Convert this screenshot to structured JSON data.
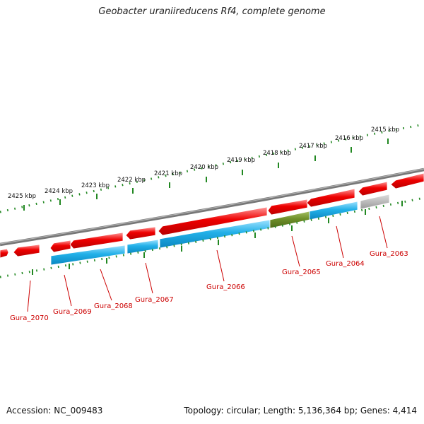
{
  "title": "Geobacter uraniireducens Rf4, complete genome",
  "footer": {
    "accession_label": "Accession: NC_009483",
    "topology_label": "Topology: circular; Length: 5,136,364 bp; Genes: 4,414"
  },
  "colors": {
    "forward_gene": "#ee0000",
    "reverse_gene": "#22b0e8",
    "highlight_gene": "#6e8f2a",
    "pseudo_gene": "#bbbbbb",
    "backbone": "#777777",
    "ticks": "#228822",
    "callout": "#cc0000"
  },
  "scale": {
    "labels": [
      "2425 kbp",
      "2424 kbp",
      "2423 kbp",
      "2422 kbp",
      "2421 kbp",
      "2420 kbp",
      "2419 kbp",
      "2418 kbp",
      "2417 kbp",
      "2416 kbp",
      "2415 kbp"
    ]
  },
  "genes": [
    {
      "label": "Gura_2070"
    },
    {
      "label": "Gura_2069"
    },
    {
      "label": "Gura_2068"
    },
    {
      "label": "Gura_2067"
    },
    {
      "label": "Gura_2066"
    },
    {
      "label": "Gura_2065"
    },
    {
      "label": "Gura_2064"
    },
    {
      "label": "Gura_2063"
    }
  ]
}
